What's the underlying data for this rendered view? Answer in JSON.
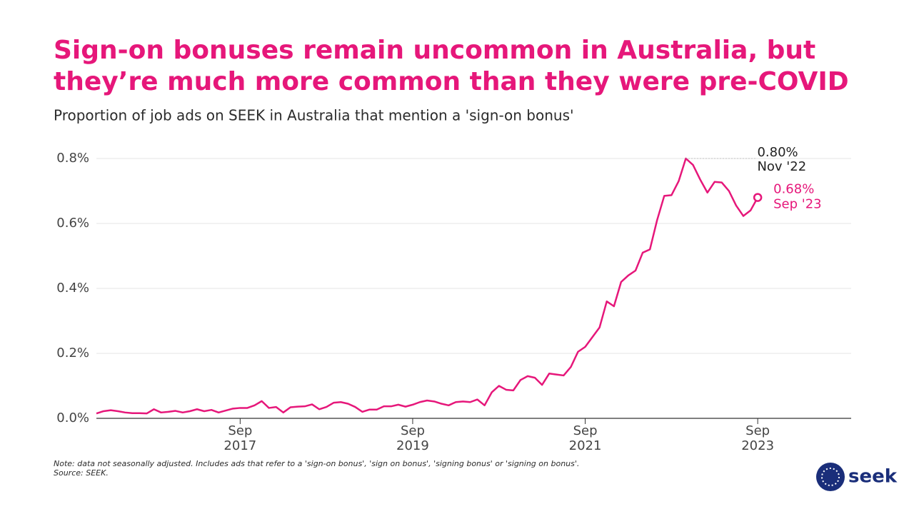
{
  "chart_data": {
    "type": "line",
    "title": [
      "Sign-on bonuses remain uncommon in Australia, but",
      "they’re much more common than they were pre-COVID"
    ],
    "subtitle": "Proportion of job ads on SEEK in Australia that mention a 'sign-on bonus'",
    "x": [
      "2016-01",
      "2016-02",
      "2016-03",
      "2016-04",
      "2016-05",
      "2016-06",
      "2016-07",
      "2016-08",
      "2016-09",
      "2016-10",
      "2016-11",
      "2016-12",
      "2017-01",
      "2017-02",
      "2017-03",
      "2017-04",
      "2017-05",
      "2017-06",
      "2017-07",
      "2017-08",
      "2017-09",
      "2017-10",
      "2017-11",
      "2017-12",
      "2018-01",
      "2018-02",
      "2018-03",
      "2018-04",
      "2018-05",
      "2018-06",
      "2018-07",
      "2018-08",
      "2018-09",
      "2018-10",
      "2018-11",
      "2018-12",
      "2019-01",
      "2019-02",
      "2019-03",
      "2019-04",
      "2019-05",
      "2019-06",
      "2019-07",
      "2019-08",
      "2019-09",
      "2019-10",
      "2019-11",
      "2019-12",
      "2020-01",
      "2020-02",
      "2020-03",
      "2020-04",
      "2020-05",
      "2020-06",
      "2020-07",
      "2020-08",
      "2020-09",
      "2020-10",
      "2020-11",
      "2020-12",
      "2021-01",
      "2021-02",
      "2021-03",
      "2021-04",
      "2021-05",
      "2021-06",
      "2021-07",
      "2021-08",
      "2021-09",
      "2021-10",
      "2021-11",
      "2021-12",
      "2022-01",
      "2022-02",
      "2022-03",
      "2022-04",
      "2022-05",
      "2022-06",
      "2022-07",
      "2022-08",
      "2022-09",
      "2022-10",
      "2022-11",
      "2022-12",
      "2023-01",
      "2023-02",
      "2023-03",
      "2023-04",
      "2023-05",
      "2023-06",
      "2023-07",
      "2023-08",
      "2023-09"
    ],
    "series": [
      {
        "name": "Sign-on bonus share",
        "color": "#e6177a",
        "values": [
          0.015,
          0.022,
          0.025,
          0.022,
          0.018,
          0.016,
          0.016,
          0.015,
          0.028,
          0.018,
          0.02,
          0.023,
          0.018,
          0.022,
          0.028,
          0.022,
          0.026,
          0.018,
          0.024,
          0.03,
          0.032,
          0.032,
          0.04,
          0.053,
          0.032,
          0.035,
          0.018,
          0.034,
          0.036,
          0.037,
          0.043,
          0.028,
          0.035,
          0.048,
          0.05,
          0.045,
          0.035,
          0.02,
          0.027,
          0.027,
          0.037,
          0.037,
          0.042,
          0.036,
          0.042,
          0.05,
          0.055,
          0.052,
          0.045,
          0.04,
          0.05,
          0.052,
          0.05,
          0.058,
          0.04,
          0.08,
          0.1,
          0.088,
          0.086,
          0.118,
          0.13,
          0.125,
          0.103,
          0.138,
          0.135,
          0.132,
          0.158,
          0.205,
          0.22,
          0.25,
          0.28,
          0.36,
          0.345,
          0.42,
          0.44,
          0.455,
          0.51,
          0.52,
          0.61,
          0.685,
          0.687,
          0.73,
          0.8,
          0.78,
          0.735,
          0.695,
          0.728,
          0.726,
          0.7,
          0.655,
          0.623,
          0.64,
          0.68
        ]
      }
    ],
    "xlim": [
      "2016-01",
      "2024-10"
    ],
    "xticks": [
      {
        "value": "2017-09",
        "label": [
          "Sep",
          "2017"
        ]
      },
      {
        "value": "2019-09",
        "label": [
          "Sep",
          "2019"
        ]
      },
      {
        "value": "2021-09",
        "label": [
          "Sep",
          "2021"
        ]
      },
      {
        "value": "2023-09",
        "label": [
          "Sep",
          "2023"
        ]
      }
    ],
    "ylim": [
      0,
      0.8
    ],
    "yticks": [
      {
        "value": 0,
        "label": "0.0%"
      },
      {
        "value": 0.2,
        "label": "0.2%"
      },
      {
        "value": 0.4,
        "label": "0.4%"
      },
      {
        "value": 0.6,
        "label": "0.6%"
      },
      {
        "value": 0.8,
        "label": "0.8%"
      }
    ],
    "grid": true,
    "annotations": [
      {
        "point": 82,
        "text": [
          "0.80%",
          "Nov '22"
        ]
      },
      {
        "point": 92,
        "text": [
          "0.68%",
          "Sep '23"
        ]
      }
    ],
    "notes": [
      "Note: data not seasonally adjusted. Includes ads that refer to a 'sign-on bonus', 'sign on bonus', 'signing bonus' or 'signing on bonus'.",
      "Source: SEEK."
    ],
    "logo": "seek"
  }
}
